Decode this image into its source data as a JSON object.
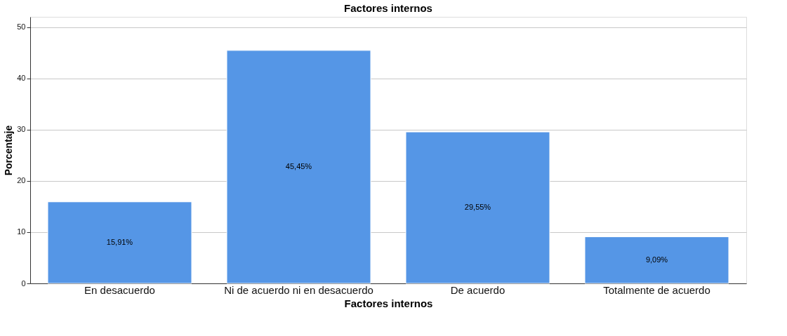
{
  "chart_data": {
    "type": "bar",
    "title": "Factores internos",
    "xlabel": "Factores internos",
    "ylabel": "Porcentaje",
    "categories": [
      "En desacuerdo",
      "Ni de acuerdo ni en desacuerdo",
      "De acuerdo",
      "Totalmente de acuerdo"
    ],
    "values": [
      15.91,
      45.45,
      29.55,
      9.09
    ],
    "value_labels": [
      "15,91%",
      "45,45%",
      "29,55%",
      "9,09%"
    ],
    "color": "#5596e6",
    "ylim": [
      0,
      52
    ],
    "yticks": [
      0,
      10,
      20,
      30,
      40,
      50
    ],
    "grid": "y"
  }
}
